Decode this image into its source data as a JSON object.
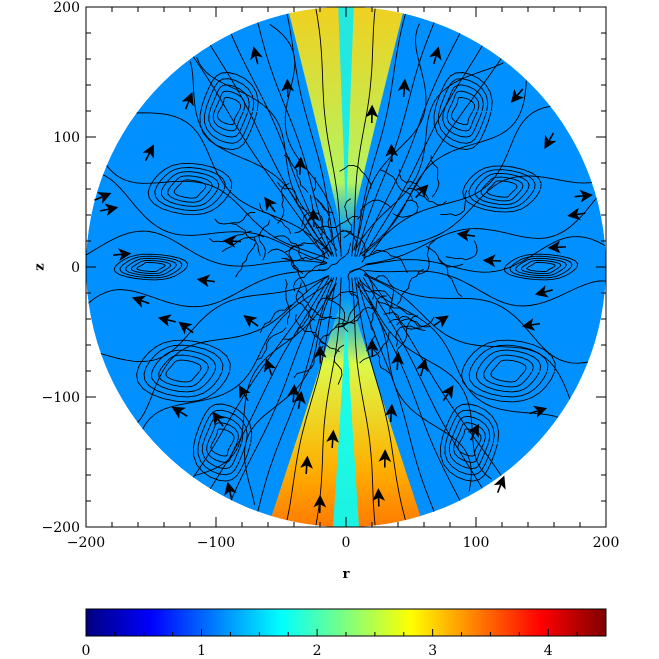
{
  "chart_data": {
    "type": "heatmap",
    "plot_kind": "meridional-plane map with streamlines and vector arrows",
    "domain_shape": "disk of radius 200",
    "xlabel": "r",
    "ylabel": "z",
    "xlim": [
      -200,
      200
    ],
    "ylim": [
      -200,
      200
    ],
    "x_ticks": [
      -200,
      -100,
      0,
      100,
      200
    ],
    "y_ticks": [
      -200,
      -100,
      0,
      100,
      200
    ],
    "x_tick_labels": [
      "−200",
      "−100",
      "0",
      "100",
      "200"
    ],
    "y_tick_labels": [
      "−200",
      "−100",
      "0",
      "100",
      "200"
    ],
    "grid": false,
    "background_value": 1.2,
    "features": [
      {
        "name": "upper jet lobes",
        "value_range": [
          1.8,
          3.3
        ],
        "r_center": [
          -20,
          20
        ],
        "z_range": [
          60,
          195
        ]
      },
      {
        "name": "lower jet lobes",
        "value_range": [
          1.8,
          4.0
        ],
        "r_center": [
          -25,
          25
        ],
        "z_range": [
          -195,
          -60
        ]
      }
    ],
    "colorbar": {
      "orientation": "horizontal",
      "position": "bottom",
      "range": [
        0,
        4.5
      ],
      "ticks": [
        0,
        1,
        2,
        3,
        4
      ],
      "tick_labels": [
        "0",
        "1",
        "2",
        "3",
        "4"
      ],
      "colormap": "jet",
      "colors": [
        "#00007f",
        "#0000ff",
        "#007fff",
        "#00ffff",
        "#7fff7f",
        "#ffff00",
        "#ff7f00",
        "#ff0000",
        "#7f0000"
      ]
    }
  }
}
